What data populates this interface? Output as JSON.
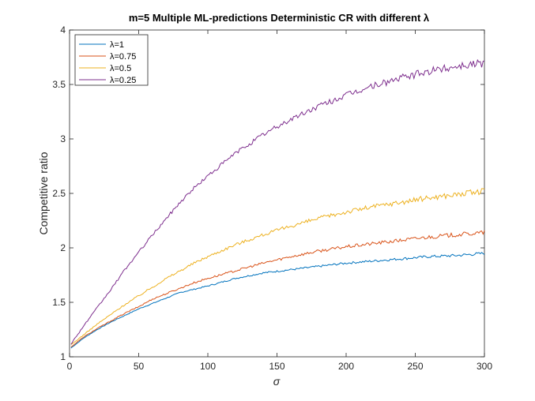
{
  "chart_data": {
    "type": "line",
    "title": "m=5 Multiple ML-predictions Deterministic CR with different  λ",
    "xlabel": "σ",
    "ylabel": "Competitive ratio",
    "xlim": [
      0,
      300
    ],
    "ylim": [
      1,
      4
    ],
    "xticks": [
      "0",
      "50",
      "100",
      "150",
      "200",
      "250",
      "300"
    ],
    "yticks": [
      "1",
      "1.5",
      "2",
      "2.5",
      "3",
      "3.5",
      "4"
    ],
    "grid": false,
    "legend_position": "top-left",
    "x": [
      0,
      10,
      20,
      30,
      40,
      50,
      60,
      70,
      80,
      90,
      100,
      120,
      140,
      160,
      180,
      200,
      220,
      240,
      260,
      280,
      300
    ],
    "series": [
      {
        "name": "λ=1",
        "color": "#0072BD",
        "values": [
          1.07,
          1.17,
          1.25,
          1.32,
          1.38,
          1.44,
          1.49,
          1.54,
          1.59,
          1.62,
          1.65,
          1.72,
          1.77,
          1.8,
          1.83,
          1.86,
          1.88,
          1.9,
          1.92,
          1.93,
          1.95
        ]
      },
      {
        "name": "λ=0.75",
        "color": "#D95319",
        "values": [
          1.08,
          1.18,
          1.26,
          1.33,
          1.4,
          1.46,
          1.53,
          1.58,
          1.63,
          1.68,
          1.72,
          1.79,
          1.86,
          1.92,
          1.97,
          2.01,
          2.04,
          2.07,
          2.1,
          2.12,
          2.14
        ]
      },
      {
        "name": "λ=0.5",
        "color": "#EDB120",
        "values": [
          1.1,
          1.2,
          1.3,
          1.39,
          1.48,
          1.56,
          1.64,
          1.72,
          1.79,
          1.86,
          1.92,
          2.03,
          2.12,
          2.2,
          2.27,
          2.33,
          2.38,
          2.42,
          2.46,
          2.49,
          2.52
        ]
      },
      {
        "name": "λ=0.25",
        "color": "#7E2F8E",
        "values": [
          1.1,
          1.28,
          1.45,
          1.62,
          1.8,
          1.96,
          2.12,
          2.27,
          2.42,
          2.55,
          2.66,
          2.87,
          3.04,
          3.18,
          3.3,
          3.4,
          3.49,
          3.56,
          3.62,
          3.67,
          3.7
        ]
      }
    ]
  }
}
